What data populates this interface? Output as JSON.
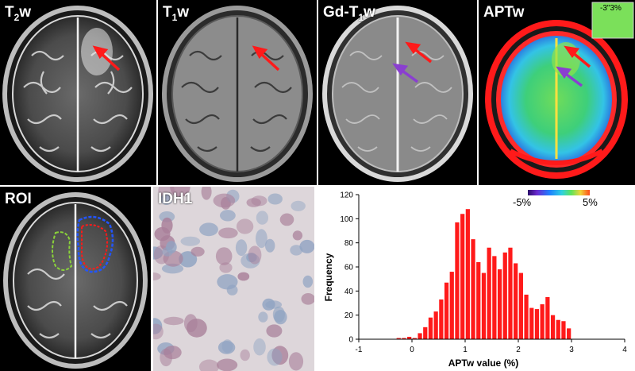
{
  "panels": {
    "t2w": {
      "label_base": "T",
      "label_sub": "2",
      "label_suffix": "w"
    },
    "t1w": {
      "label_base": "T",
      "label_sub": "1",
      "label_suffix": "w"
    },
    "gd_t1w": {
      "label_base": "Gd-T",
      "label_sub": "1",
      "label_suffix": "w"
    },
    "aptw": {
      "label": "APTw",
      "inset_label": "-3\"3%"
    },
    "roi": {
      "label": "ROI"
    },
    "idh1": {
      "label": "IDH1"
    }
  },
  "colorbar": {
    "min_label": "-5%",
    "max_label": "5%"
  },
  "colors": {
    "arrow_red": "#ff1a1a",
    "arrow_purple": "#8a3fd0",
    "bar_red": "#ff1a1a",
    "roi_blue": "#2255ff",
    "roi_green": "#8ad23a"
  },
  "chart_data": {
    "type": "bar",
    "xlabel": "APTw value (%)",
    "ylabel": "Frequency",
    "xlim": [
      -1,
      4
    ],
    "ylim": [
      0,
      120
    ],
    "xticks": [
      "-1",
      "0",
      "1",
      "2",
      "3",
      "4"
    ],
    "yticks": [
      "0",
      "20",
      "40",
      "60",
      "80",
      "100",
      "120"
    ],
    "x": [
      -0.25,
      -0.15,
      -0.05,
      0.05,
      0.15,
      0.25,
      0.35,
      0.45,
      0.55,
      0.65,
      0.75,
      0.85,
      0.95,
      1.05,
      1.15,
      1.25,
      1.35,
      1.45,
      1.55,
      1.65,
      1.75,
      1.85,
      1.95,
      2.05,
      2.15,
      2.25,
      2.35,
      2.45,
      2.55,
      2.65,
      2.75,
      2.85,
      2.95
    ],
    "values": [
      1,
      1,
      2,
      1,
      5,
      10,
      18,
      23,
      33,
      47,
      56,
      97,
      104,
      108,
      83,
      64,
      55,
      76,
      69,
      58,
      72,
      76,
      63,
      55,
      37,
      26,
      25,
      29,
      35,
      20,
      16,
      15,
      9
    ]
  }
}
